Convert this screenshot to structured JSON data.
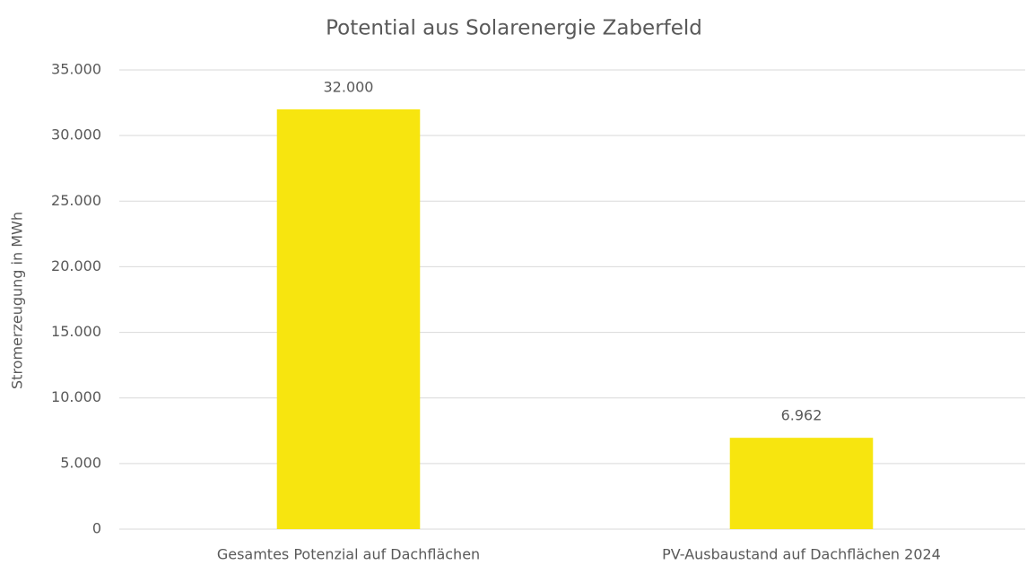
{
  "chart_data": {
    "type": "bar",
    "title": "Potential aus Solarenergie Zaberfeld",
    "ylabel": "Stromerzeugung in MWh",
    "categories": [
      "Gesamtes Potenzial auf Dachflächen",
      "PV-Ausbaustand auf Dachflächen 2024"
    ],
    "values": [
      32000,
      6962
    ],
    "value_labels": [
      "32.000",
      "6.962"
    ],
    "color": "#f7e50f",
    "ylim": [
      0,
      35000
    ],
    "yticks": [
      0,
      {
        "value": 5000,
        "label": "5.000"
      },
      {
        "value": 10000,
        "label": "10.000"
      },
      {
        "value": 15000,
        "label": "15.000"
      },
      {
        "value": 20000,
        "label": "20.000"
      },
      {
        "value": 25000,
        "label": "25.000"
      },
      {
        "value": 30000,
        "label": "30.000"
      },
      {
        "value": 35000,
        "label": "35.000"
      }
    ],
    "grid": true
  }
}
